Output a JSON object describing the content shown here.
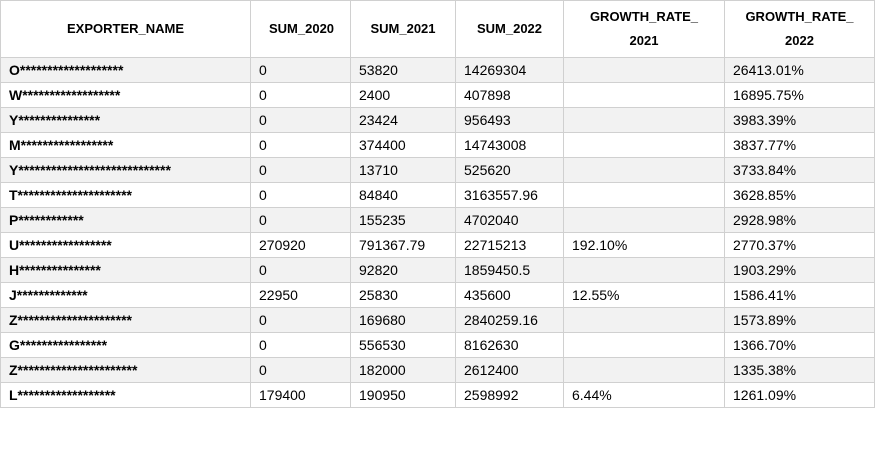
{
  "table": {
    "header": [
      "EXPORTER_NAME",
      "SUM_2020",
      "SUM_2021",
      "SUM_2022",
      "GROWTH_RATE_ 2021",
      "GROWTH_RATE_ 2022"
    ],
    "rows": [
      [
        "O*******************",
        0,
        53820,
        14269304,
        null,
        "26413.01%"
      ],
      [
        "W******************",
        0,
        2400,
        407898,
        null,
        "16895.75%"
      ],
      [
        "Y***************",
        0,
        23424,
        956493,
        null,
        "3983.39%"
      ],
      [
        "M*****************",
        0,
        374400,
        14743008,
        null,
        "3837.77%"
      ],
      [
        "Y****************************",
        0,
        13710,
        525620,
        null,
        "3733.84%"
      ],
      [
        "T*********************",
        0,
        84840,
        3163557.96,
        null,
        "3628.85%"
      ],
      [
        "P************",
        0,
        155235,
        4702040,
        null,
        "2928.98%"
      ],
      [
        "U*****************",
        270920,
        791367.79,
        22715213,
        "192.10%",
        "2770.37%"
      ],
      [
        "H***************",
        0,
        92820,
        1859450.5,
        null,
        "1903.29%"
      ],
      [
        "J*************",
        22950,
        25830,
        435600,
        "12.55%",
        "1586.41%"
      ],
      [
        "Z*********************",
        0,
        169680,
        2840259.16,
        null,
        "1573.89%"
      ],
      [
        "G****************",
        0,
        556530,
        8162630,
        null,
        "1366.70%"
      ],
      [
        "Z**********************",
        0,
        182000,
        2612400,
        null,
        "1335.38%"
      ],
      [
        "L******************",
        179400,
        190950,
        2598992,
        "6.44%",
        "1261.09%"
      ]
    ]
  }
}
